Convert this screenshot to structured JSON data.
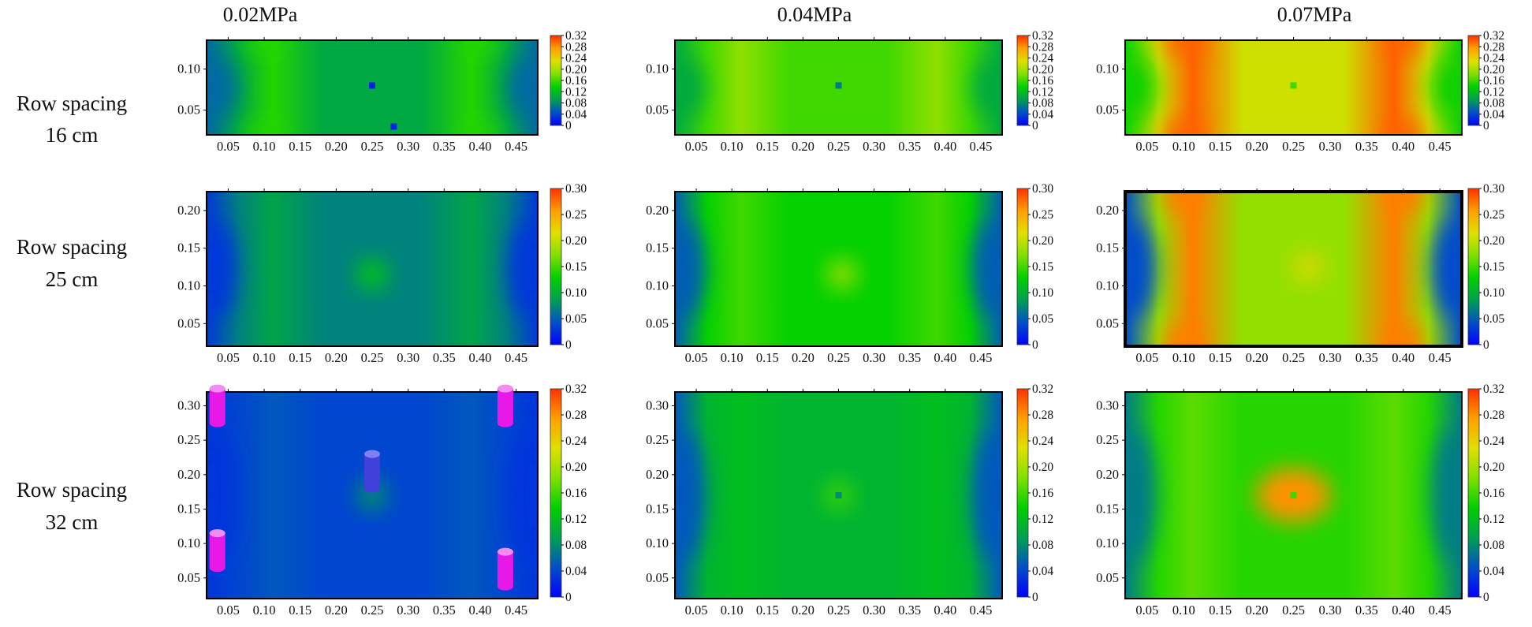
{
  "figure": {
    "column_titles": [
      "0.02MPa",
      "0.04MPa",
      "0.07MPa"
    ],
    "row_labels": [
      {
        "line1": "Row spacing",
        "line2": "16 cm"
      },
      {
        "line1": "Row spacing",
        "line2": "25 cm"
      },
      {
        "line1": "Row spacing",
        "line2": "32 cm"
      }
    ]
  },
  "chart_data": {
    "type": "heatmap",
    "title": "",
    "colormap": [
      "#0000ff",
      "#0050c8",
      "#00a050",
      "#00d000",
      "#80e000",
      "#e0e000",
      "#ffa000",
      "#ff3000"
    ],
    "x_ticks": [
      "0.05",
      "0.10",
      "0.15",
      "0.20",
      "0.25",
      "0.30",
      "0.35",
      "0.40",
      "0.45"
    ],
    "x_range": [
      0.02,
      0.48
    ],
    "rows": [
      {
        "row_spacing": "16 cm",
        "y_range": [
          0.02,
          0.135
        ],
        "y_ticks": [
          "0.05",
          "0.10"
        ],
        "colorbar_ticks": [
          "0.32",
          "0.28",
          "0.24",
          "0.20",
          "0.16",
          "0.12",
          "0.08",
          "0.04",
          "0"
        ],
        "vmax": 0.32
      },
      {
        "row_spacing": "25 cm",
        "y_range": [
          0.02,
          0.225
        ],
        "y_ticks": [
          "0.05",
          "0.10",
          "0.15",
          "0.20"
        ],
        "colorbar_ticks": [
          "0.30",
          "0.25",
          "0.20",
          "0.15",
          "0.10",
          "0.05",
          "0"
        ],
        "vmax": 0.3
      },
      {
        "row_spacing": "32 cm",
        "y_range": [
          0.02,
          0.32
        ],
        "y_ticks": [
          "0.05",
          "0.10",
          "0.15",
          "0.20",
          "0.25",
          "0.30"
        ],
        "colorbar_ticks": [
          "0.32",
          "0.28",
          "0.24",
          "0.20",
          "0.16",
          "0.12",
          "0.08",
          "0.04",
          "0"
        ],
        "vmax": 0.32
      }
    ],
    "panels": [
      {
        "row": 0,
        "pressure": "0.02MPa",
        "base": 0.1,
        "peak": 0.15,
        "center": 0.06,
        "hotspots": [],
        "emitters": [
          [
            0.25,
            0.08,
            0.02
          ],
          [
            0.28,
            0.03,
            0.02
          ]
        ]
      },
      {
        "row": 0,
        "pressure": "0.04MPa",
        "base": 0.16,
        "peak": 0.19,
        "center": 0.1,
        "hotspots": [],
        "emitters": [
          [
            0.25,
            0.08,
            0.07
          ]
        ]
      },
      {
        "row": 0,
        "pressure": "0.07MPa",
        "base": 0.22,
        "peak": 0.3,
        "center": 0.14,
        "hotspots": [],
        "emitters": [
          [
            0.25,
            0.08,
            0.16
          ]
        ]
      },
      {
        "row": 1,
        "pressure": "0.02MPa",
        "base": 0.07,
        "peak": 0.09,
        "center": 0.03,
        "hotspots": [
          [
            0.25,
            0.115,
            0.13
          ]
        ],
        "emitters": []
      },
      {
        "row": 1,
        "pressure": "0.04MPa",
        "base": 0.13,
        "peak": 0.15,
        "center": 0.05,
        "hotspots": [
          [
            0.255,
            0.115,
            0.19
          ]
        ],
        "emitters": []
      },
      {
        "row": 1,
        "pressure": "0.07MPa",
        "base": 0.18,
        "peak": 0.27,
        "center": 0.04,
        "hotspots": [
          [
            0.27,
            0.125,
            0.22
          ]
        ],
        "emitters": []
      },
      {
        "row": 2,
        "pressure": "0.02MPa",
        "base": 0.04,
        "peak": 0.05,
        "center": 0.03,
        "hotspots": [
          [
            0.25,
            0.17,
            0.09
          ]
        ],
        "emitters": []
      },
      {
        "row": 2,
        "pressure": "0.04MPa",
        "base": 0.11,
        "peak": 0.12,
        "center": 0.05,
        "hotspots": [
          [
            0.25,
            0.17,
            0.16
          ]
        ],
        "emitters": [
          [
            0.25,
            0.17,
            0.08
          ]
        ]
      },
      {
        "row": 2,
        "pressure": "0.07MPa",
        "base": 0.15,
        "peak": 0.17,
        "center": 0.07,
        "hotspots": [
          [
            0.25,
            0.17,
            0.28
          ]
        ],
        "emitters": [
          [
            0.25,
            0.17,
            0.16
          ]
        ]
      }
    ]
  }
}
